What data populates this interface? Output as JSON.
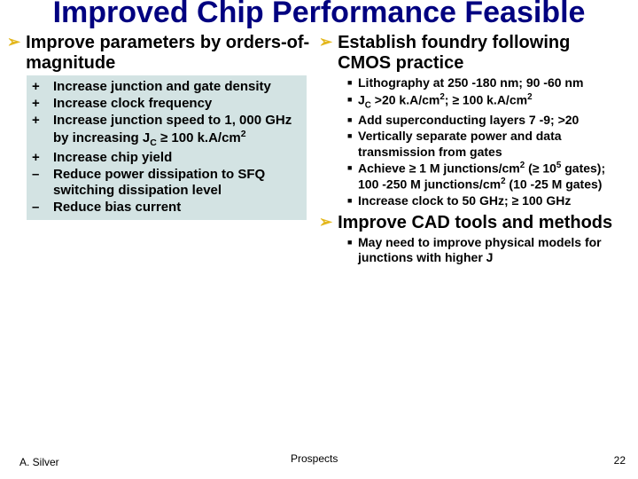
{
  "title": "Improved Chip Performance Feasible",
  "left": {
    "heading": "Improve parameters by orders-of-magnitude",
    "items": [
      {
        "mark": "+",
        "text": "Increase junction and gate density"
      },
      {
        "mark": "+",
        "text": "Increase clock frequency"
      },
      {
        "mark": "+",
        "text": "Increase junction speed to 1, 000 GHz by increasing J",
        "sub": "C",
        "tail": " ≥ 100 k.A/cm",
        "sup2": "2"
      },
      {
        "mark": "+",
        "text": "Increase chip yield"
      },
      {
        "mark": "–",
        "text": "Reduce power dissipation to SFQ switching dissipation level"
      },
      {
        "mark": "–",
        "text": "Reduce bias current"
      }
    ]
  },
  "right": {
    "heading1": "Establish foundry following CMOS practice",
    "items1": [
      "Lithography at 250 -180 nm; 90 -60 nm",
      "J|C| >20 k.A/cm|2|; ≥ 100 k.A/cm|2|",
      "Add superconducting layers 7 -9; >20",
      "Vertically separate power and data transmission from gates",
      "Achieve ≥ 1 M junctions/cm|2| (≥ 10|5| gates);\n100 -250 M junctions/cm|2| (10 -25 M gates)",
      "Increase clock to 50 GHz; ≥ 100 GHz"
    ],
    "heading2": "Improve CAD tools and methods",
    "items2": [
      "May need to improve physical models for junctions with higher J"
    ]
  },
  "footer": {
    "author": "A. Silver",
    "center": "Prospects",
    "page": "22"
  },
  "colors": {
    "title": "#000080",
    "arrow": "#e3b71d",
    "box_bg": "#d3e3e3"
  }
}
